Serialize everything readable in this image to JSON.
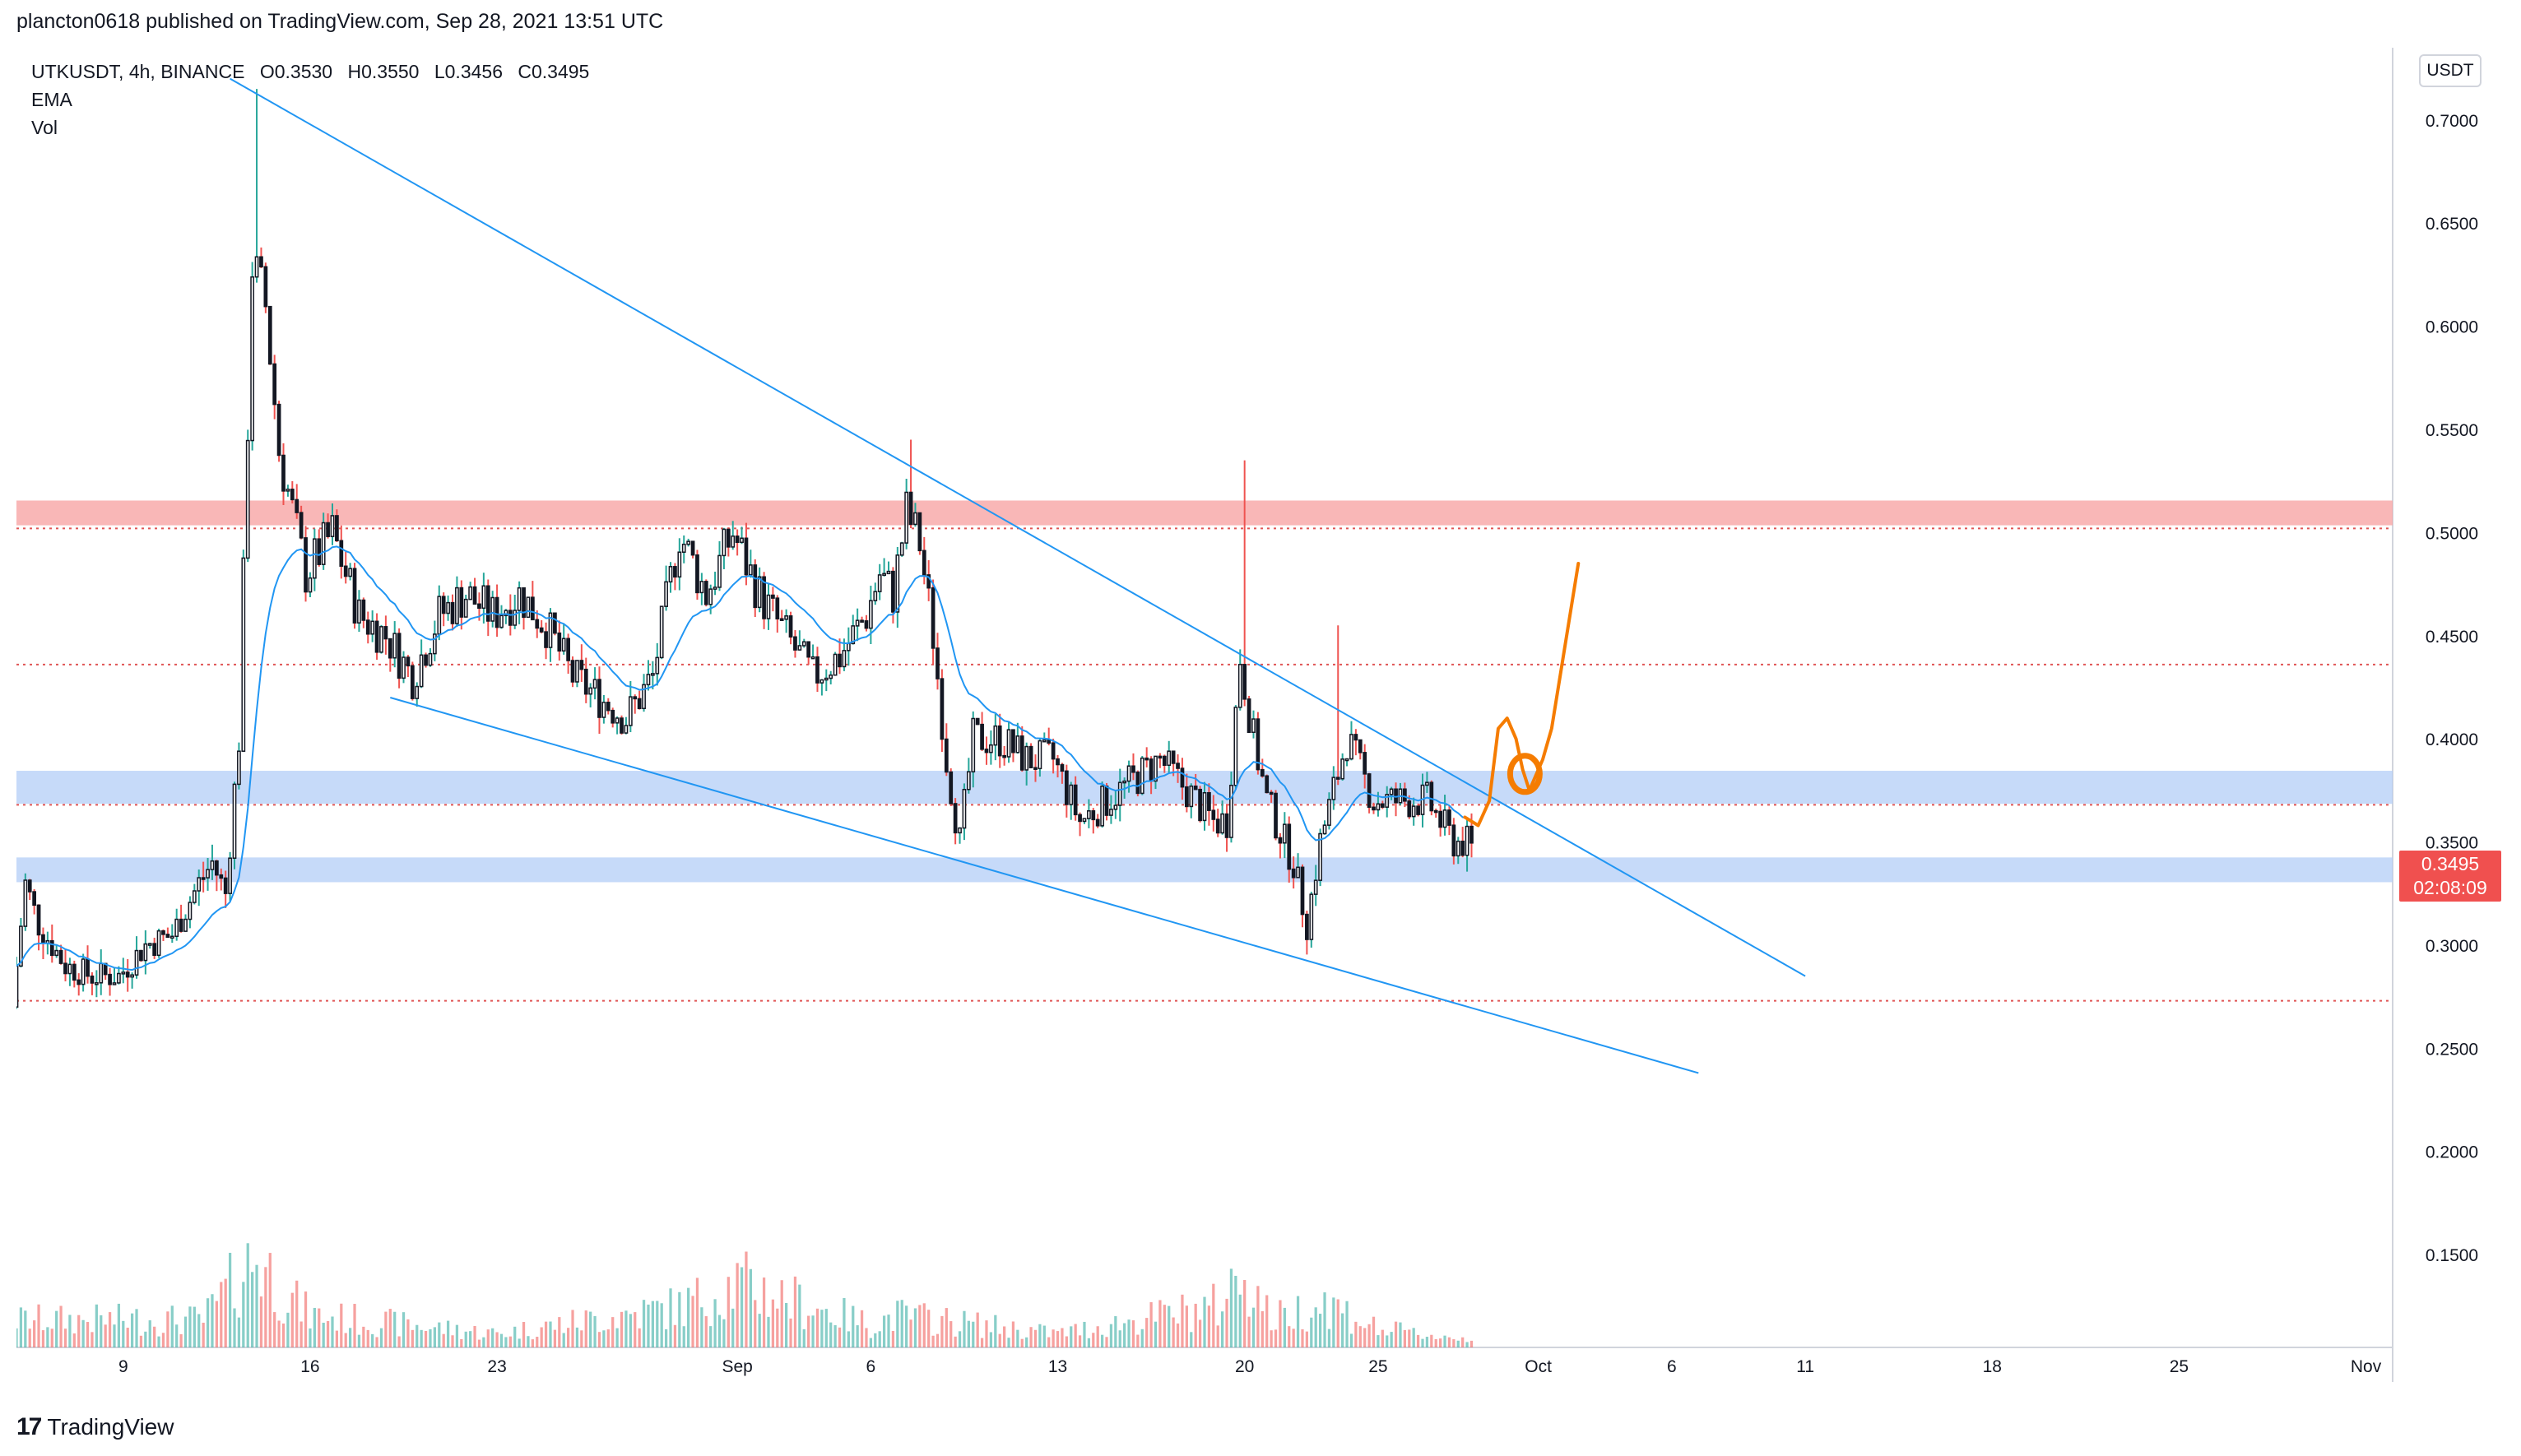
{
  "publisher_line": "plancton0618 published on TradingView.com, Sep 28, 2021 13:51 UTC",
  "legend": {
    "symbol": "UTKUSDT, 4h, BINANCE",
    "open": "O0.3530",
    "high": "H0.3550",
    "low": "L0.3456",
    "close": "C0.3495",
    "ema_label": "EMA",
    "vol_label": "Vol"
  },
  "currency_button": "USDT",
  "price_tag": {
    "price": "0.3495",
    "countdown": "02:08:09"
  },
  "footer_brand": "TradingView",
  "colors": {
    "up": "#26a69a",
    "down": "#ef5350",
    "candle_body": "#131722",
    "trendline": "#2196f3",
    "ema": "#2196f3",
    "annotation": "#f57c00",
    "resistance_zone": "#f8a5a5",
    "support_zone": "#b3cdf7",
    "dotted_level": "#e05454"
  },
  "chart_data": {
    "type": "candlestick",
    "symbol": "UTKUSDT",
    "interval": "4h",
    "exchange": "BINANCE",
    "y_axis": {
      "ylim": [
        0.105,
        0.735
      ],
      "ticks": [
        0.7,
        0.65,
        0.6,
        0.55,
        0.5,
        0.45,
        0.4,
        0.35,
        0.3,
        0.25,
        0.2,
        0.15
      ],
      "tick_labels": [
        "0.7000",
        "0.6500",
        "0.6000",
        "0.5500",
        "0.5000",
        "0.4500",
        "0.4000",
        "0.3500",
        "0.3000",
        "0.2500",
        "0.2000",
        "0.1500"
      ]
    },
    "x_axis": {
      "ticks": [
        "9",
        "16",
        "23",
        "Sep",
        "6",
        "13",
        "20",
        "25",
        "Oct",
        "6",
        "11",
        "18",
        "25",
        "Nov"
      ],
      "tick_dates": [
        "2021-08-09",
        "2021-08-16",
        "2021-08-23",
        "2021-09-01",
        "2021-09-06",
        "2021-09-13",
        "2021-09-20",
        "2021-09-25",
        "2021-10-01",
        "2021-10-06",
        "2021-10-11",
        "2021-10-18",
        "2021-10-25",
        "2021-11-01"
      ],
      "range": [
        "2021-08-05",
        "2021-11-02"
      ]
    },
    "price_path": [
      [
        "2021-08-05",
        0.27
      ],
      [
        "2021-08-05T12",
        0.33
      ],
      [
        "2021-08-06",
        0.31
      ],
      [
        "2021-08-07",
        0.29
      ],
      [
        "2021-08-08",
        0.285
      ],
      [
        "2021-08-09",
        0.285
      ],
      [
        "2021-08-10",
        0.3
      ],
      [
        "2021-08-11",
        0.305
      ],
      [
        "2021-08-12",
        0.33
      ],
      [
        "2021-08-12T12",
        0.34
      ],
      [
        "2021-08-13",
        0.325
      ],
      [
        "2021-08-13T12",
        0.4
      ],
      [
        "2021-08-14",
        0.63
      ],
      [
        "2021-08-14T12",
        0.61
      ],
      [
        "2021-08-15",
        0.54
      ],
      [
        "2021-08-15T12",
        0.51
      ],
      [
        "2021-08-16",
        0.48
      ],
      [
        "2021-08-17",
        0.5
      ],
      [
        "2021-08-18",
        0.46
      ],
      [
        "2021-08-19",
        0.45
      ],
      [
        "2021-08-20",
        0.43
      ],
      [
        "2021-08-21",
        0.46
      ],
      [
        "2021-08-22",
        0.47
      ],
      [
        "2021-08-23",
        0.46
      ],
      [
        "2021-08-24",
        0.47
      ],
      [
        "2021-08-25",
        0.455
      ],
      [
        "2021-08-26",
        0.43
      ],
      [
        "2021-08-27",
        0.42
      ],
      [
        "2021-08-28",
        0.41
      ],
      [
        "2021-08-29",
        0.43
      ],
      [
        "2021-08-30",
        0.5
      ],
      [
        "2021-08-31",
        0.47
      ],
      [
        "2021-09-01",
        0.5
      ],
      [
        "2021-09-02",
        0.47
      ],
      [
        "2021-09-03",
        0.45
      ],
      [
        "2021-09-04",
        0.43
      ],
      [
        "2021-09-05",
        0.44
      ],
      [
        "2021-09-06",
        0.46
      ],
      [
        "2021-09-06T12",
        0.48
      ],
      [
        "2021-09-07",
        0.47
      ],
      [
        "2021-09-07T12",
        0.51
      ],
      [
        "2021-09-08",
        0.495
      ],
      [
        "2021-09-08T12",
        0.45
      ],
      [
        "2021-09-09",
        0.39
      ],
      [
        "2021-09-09T12",
        0.35
      ],
      [
        "2021-09-10",
        0.4
      ],
      [
        "2021-09-11",
        0.4
      ],
      [
        "2021-09-12",
        0.39
      ],
      [
        "2021-09-13",
        0.39
      ],
      [
        "2021-09-14",
        0.36
      ],
      [
        "2021-09-15",
        0.37
      ],
      [
        "2021-09-16",
        0.38
      ],
      [
        "2021-09-17",
        0.39
      ],
      [
        "2021-09-18",
        0.375
      ],
      [
        "2021-09-19",
        0.36
      ],
      [
        "2021-09-19T12",
        0.36
      ],
      [
        "2021-09-20",
        0.44
      ],
      [
        "2021-09-20T12",
        0.4
      ],
      [
        "2021-09-21",
        0.37
      ],
      [
        "2021-09-22",
        0.34
      ],
      [
        "2021-09-22T12",
        0.31
      ],
      [
        "2021-09-23",
        0.35
      ],
      [
        "2021-09-24",
        0.4
      ],
      [
        "2021-09-25",
        0.37
      ],
      [
        "2021-09-26",
        0.37
      ],
      [
        "2021-09-26T12",
        0.37
      ],
      [
        "2021-09-27",
        0.37
      ],
      [
        "2021-09-28",
        0.35
      ],
      [
        "2021-09-28T12",
        0.3495
      ]
    ],
    "spike_wicks": [
      {
        "date": "2021-08-14",
        "high": 0.715
      },
      {
        "date": "2021-09-07T12",
        "high": 0.545
      },
      {
        "date": "2021-09-20",
        "high": 0.535
      },
      {
        "date": "2021-09-23T12",
        "high": 0.455
      }
    ],
    "last": {
      "open": 0.353,
      "high": 0.355,
      "low": 0.3456,
      "close": 0.3495
    },
    "volume_profile": [
      [
        "2021-08-05",
        0.3
      ],
      [
        "2021-08-12",
        0.3
      ],
      [
        "2021-08-14",
        1.0
      ],
      [
        "2021-08-15",
        0.6
      ],
      [
        "2021-08-16",
        0.35
      ],
      [
        "2021-08-23",
        0.15
      ],
      [
        "2021-08-30",
        0.45
      ],
      [
        "2021-09-01",
        0.7
      ],
      [
        "2021-09-06",
        0.25
      ],
      [
        "2021-09-07",
        0.35
      ],
      [
        "2021-09-13",
        0.15
      ],
      [
        "2021-09-19",
        0.45
      ],
      [
        "2021-09-20",
        0.85
      ],
      [
        "2021-09-21",
        0.3
      ],
      [
        "2021-09-23",
        0.5
      ],
      [
        "2021-09-25",
        0.2
      ],
      [
        "2021-09-28",
        0.1
      ]
    ],
    "zones": [
      {
        "kind": "resistance",
        "from": 0.5035,
        "to": 0.5155
      },
      {
        "kind": "support",
        "from": 0.3685,
        "to": 0.3845
      },
      {
        "kind": "support",
        "from": 0.3305,
        "to": 0.3425
      }
    ],
    "dotted_levels": [
      0.502,
      0.436,
      0.368,
      0.273
    ],
    "trendlines": [
      {
        "from": [
          "2021-08-13",
          0.72
        ],
        "to": [
          "2021-10-11",
          0.285
        ]
      },
      {
        "from": [
          "2021-08-19",
          0.42
        ],
        "to": [
          "2021-10-07",
          0.238
        ]
      }
    ],
    "annotation_path": [
      [
        "2021-09-28T06",
        0.362
      ],
      [
        "2021-09-28T18",
        0.358
      ],
      [
        "2021-09-29T04",
        0.37
      ],
      [
        "2021-09-29T12",
        0.405
      ],
      [
        "2021-09-29T20",
        0.41
      ],
      [
        "2021-09-30T04",
        0.4
      ],
      [
        "2021-09-30T10",
        0.385
      ],
      [
        "2021-09-30T16",
        0.375
      ],
      [
        "2021-09-30T20",
        0.38
      ],
      [
        "2021-10-01T04",
        0.39
      ],
      [
        "2021-10-01T12",
        0.405
      ],
      [
        "2021-10-02",
        0.445
      ],
      [
        "2021-10-02T12",
        0.485
      ]
    ],
    "annotation_circle": {
      "date": "2021-09-30T12",
      "price": 0.383
    }
  }
}
